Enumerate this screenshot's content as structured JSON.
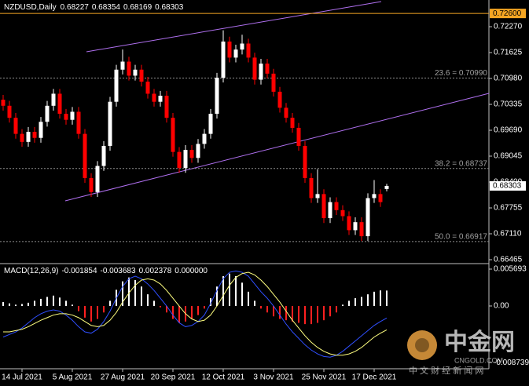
{
  "chart_data": [
    {
      "type": "candlestick",
      "title": "NZDUSD,Daily",
      "categories": [
        null,
        null,
        null,
        "14 Jul 2021",
        null,
        null,
        null,
        null,
        null,
        null,
        null,
        "5 Aug 2021",
        null,
        null,
        null,
        null,
        null,
        null,
        null,
        "27 Aug 2021",
        null,
        null,
        null,
        null,
        null,
        null,
        null,
        "20 Sep 2021",
        null,
        null,
        null,
        null,
        null,
        null,
        null,
        "12 Oct 2021",
        null,
        null,
        null,
        null,
        null,
        null,
        null,
        "3 Nov 2021",
        null,
        null,
        null,
        null,
        null,
        null,
        null,
        "25 Nov 2021",
        null,
        null,
        null,
        null,
        null,
        null,
        null,
        "17 Dec 2021",
        null,
        null
      ],
      "open": [
        0.7045,
        0.703,
        0.7,
        0.696,
        0.694,
        0.6965,
        0.695,
        0.699,
        0.703,
        0.706,
        0.701,
        0.6995,
        0.7015,
        0.696,
        0.685,
        0.6815,
        0.688,
        0.693,
        0.704,
        0.712,
        0.714,
        0.7105,
        0.712,
        0.709,
        0.706,
        0.704,
        0.7055,
        0.7,
        0.6915,
        0.6875,
        0.692,
        0.69,
        0.6935,
        0.696,
        0.701,
        0.71,
        0.719,
        0.715,
        0.717,
        0.7185,
        0.715,
        0.7095,
        0.7135,
        0.711,
        0.7065,
        0.7025,
        0.7,
        0.6975,
        0.693,
        0.685,
        0.68,
        0.681,
        0.675,
        0.679,
        0.677,
        0.6755,
        0.672,
        0.674,
        0.6705,
        0.68,
        0.681,
        0.68227
      ],
      "high": [
        0.7057,
        0.7042,
        0.7012,
        0.6972,
        0.6977,
        0.6977,
        0.7002,
        0.7042,
        0.7072,
        0.7072,
        0.7022,
        0.7027,
        0.7027,
        0.6972,
        0.6862,
        0.6892,
        0.6942,
        0.7052,
        0.7132,
        0.717,
        0.7152,
        0.7132,
        0.7132,
        0.7102,
        0.7072,
        0.7067,
        0.7067,
        0.7012,
        0.6927,
        0.6932,
        0.6932,
        0.6947,
        0.6972,
        0.7022,
        0.7112,
        0.7218,
        0.7202,
        0.7182,
        0.7207,
        0.7197,
        0.7162,
        0.7147,
        0.7147,
        0.7122,
        0.7077,
        0.7037,
        0.7012,
        0.6987,
        0.6942,
        0.6862,
        0.6872,
        0.6822,
        0.6802,
        0.6802,
        0.6782,
        0.6767,
        0.6752,
        0.6752,
        0.6812,
        0.6845,
        0.6822,
        0.68354
      ],
      "low": [
        0.7018,
        0.6988,
        0.6948,
        0.6928,
        0.6928,
        0.6938,
        0.6938,
        0.6978,
        0.7018,
        0.6998,
        0.6983,
        0.6983,
        0.6948,
        0.6838,
        0.6803,
        0.6803,
        0.6868,
        0.6918,
        0.7028,
        0.7108,
        0.7093,
        0.7093,
        0.7078,
        0.7048,
        0.7028,
        0.7028,
        0.6988,
        0.6903,
        0.6863,
        0.6863,
        0.6888,
        0.6888,
        0.6923,
        0.6948,
        0.6998,
        0.7088,
        0.7138,
        0.7138,
        0.7158,
        0.7138,
        0.7083,
        0.7083,
        0.7098,
        0.7053,
        0.7013,
        0.6988,
        0.6963,
        0.6918,
        0.6838,
        0.6788,
        0.6788,
        0.6738,
        0.6738,
        0.6758,
        0.6743,
        0.6708,
        0.6708,
        0.6693,
        0.6693,
        0.6788,
        0.6778,
        0.68169
      ],
      "close": [
        0.703,
        0.7,
        0.696,
        0.694,
        0.6965,
        0.695,
        0.699,
        0.703,
        0.706,
        0.701,
        0.6995,
        0.7015,
        0.696,
        0.685,
        0.6815,
        0.688,
        0.693,
        0.704,
        0.712,
        0.714,
        0.7105,
        0.712,
        0.709,
        0.706,
        0.704,
        0.7055,
        0.7,
        0.6915,
        0.6875,
        0.692,
        0.69,
        0.6935,
        0.696,
        0.701,
        0.71,
        0.719,
        0.715,
        0.717,
        0.7185,
        0.715,
        0.7095,
        0.7135,
        0.711,
        0.7065,
        0.7025,
        0.7,
        0.6975,
        0.693,
        0.685,
        0.68,
        0.681,
        0.675,
        0.679,
        0.677,
        0.6755,
        0.672,
        0.674,
        0.6705,
        0.68,
        0.681,
        0.679,
        0.68303
      ],
      "up_color": "#ffffff",
      "down_color": "#ff0000",
      "ylim": [
        0.66387,
        0.72935
      ],
      "yticks": [
        {
          "value": 0.7227,
          "label": "0.72270"
        },
        {
          "value": 0.71625,
          "label": "0.71625"
        },
        {
          "value": 0.7098,
          "label": "0.70980"
        },
        {
          "value": 0.70335,
          "label": "0.70335"
        },
        {
          "value": 0.6969,
          "label": "0.69690"
        },
        {
          "value": 0.69045,
          "label": "0.69045"
        },
        {
          "value": 0.684,
          "label": "0.68400"
        },
        {
          "value": 0.67755,
          "label": "0.67755"
        },
        {
          "value": 0.6711,
          "label": "0.67110"
        },
        {
          "value": 0.66465,
          "label": "0.66465"
        }
      ],
      "levels": [
        {
          "value": 0.7099,
          "label": "23.6 = 0.70990"
        },
        {
          "value": 0.68737,
          "label": "38.2 = 0.68737"
        },
        {
          "value": 0.66917,
          "label": "50.0 = 0.66917"
        }
      ],
      "resistance": {
        "value": 0.726,
        "label": "0.72600",
        "color": "#f5a623"
      },
      "price_label": {
        "value": 0.68303,
        "label": "0.68303"
      }
    },
    {
      "type": "macd",
      "title": "MACD(12,26,9)",
      "histogram": [
        0.0006,
        0.0004,
        0.0002,
        0.0003,
        0.0005,
        0.0008,
        0.0011,
        0.0014,
        0.0016,
        0.0013,
        0.0008,
        0.0002,
        -0.0008,
        -0.0018,
        -0.0024,
        -0.002,
        -0.001,
        0.0008,
        0.0025,
        0.0038,
        0.0044,
        0.004,
        0.003,
        0.0018,
        0.0008,
        -0.0002,
        -0.001,
        -0.002,
        -0.0026,
        -0.0024,
        -0.002,
        -0.0014,
        -0.0004,
        0.0012,
        0.003,
        0.0046,
        0.005,
        0.0046,
        0.0036,
        0.0022,
        0.0008,
        -0.0004,
        -0.001,
        -0.0016,
        -0.002,
        -0.0022,
        -0.0024,
        -0.0026,
        -0.0028,
        -0.0028,
        -0.0026,
        -0.0022,
        -0.0016,
        -0.001,
        0.0002,
        0.0008,
        0.0012,
        0.0014,
        0.0018,
        0.0022,
        0.0024,
        0.002378
      ],
      "macd": [
        -0.0048,
        -0.0044,
        -0.004,
        -0.0034,
        -0.0026,
        -0.0018,
        -0.0012,
        -0.0008,
        -0.0006,
        -0.0008,
        -0.0014,
        -0.0022,
        -0.0032,
        -0.004,
        -0.0042,
        -0.0036,
        -0.0024,
        -0.0008,
        0.0012,
        0.003,
        0.0042,
        0.0046,
        0.0042,
        0.0034,
        0.0024,
        0.0012,
        0,
        -0.0014,
        -0.0026,
        -0.0032,
        -0.003,
        -0.0024,
        -0.0014,
        0.0004,
        0.0024,
        0.0042,
        0.0052,
        0.0054,
        0.0052,
        0.0046,
        0.0034,
        0.0022,
        0.0012,
        0,
        -0.0014,
        -0.0028,
        -0.004,
        -0.005,
        -0.006,
        -0.0068,
        -0.0074,
        -0.0078,
        -0.0079,
        -0.0076,
        -0.007,
        -0.0062,
        -0.0054,
        -0.0046,
        -0.0038,
        -0.003,
        -0.0024,
        -0.001854
      ],
      "signal": [
        -0.004,
        -0.004,
        -0.0038,
        -0.0036,
        -0.0032,
        -0.0027,
        -0.0022,
        -0.0018,
        -0.0014,
        -0.0012,
        -0.0012,
        -0.0014,
        -0.0018,
        -0.0024,
        -0.003,
        -0.0032,
        -0.003,
        -0.0022,
        -0.001,
        0.0006,
        0.002,
        0.0032,
        0.004,
        0.0042,
        0.004,
        0.0034,
        0.0024,
        0.0012,
        0,
        -0.0012,
        -0.002,
        -0.0024,
        -0.0022,
        -0.0014,
        0,
        0.0016,
        0.0032,
        0.0044,
        0.005,
        0.0052,
        0.0048,
        0.004,
        0.003,
        0.0018,
        0.0006,
        -0.0008,
        -0.0022,
        -0.0034,
        -0.0046,
        -0.0056,
        -0.0064,
        -0.007,
        -0.0074,
        -0.0076,
        -0.0076,
        -0.0074,
        -0.007,
        -0.0064,
        -0.0056,
        -0.0048,
        -0.0042,
        -0.003683
      ],
      "extra_value": {
        "value": 0,
        "label": "0.000000"
      },
      "macd_color": "#2f4fff",
      "signal_color": "#ffff80",
      "up_color": "#ffffff",
      "down_color": "#ff2020",
      "ylim": [
        -0.00969,
        0.00642
      ],
      "yticks": [
        0.005693,
        {
          "value": 0,
          "label": "0.00"
        },
        -0.008739
      ]
    }
  ],
  "watermark": {
    "brand": "中金网",
    "site": "CNGOLD.COM",
    "slogan": "中 文 财 经 新 闻 网"
  }
}
